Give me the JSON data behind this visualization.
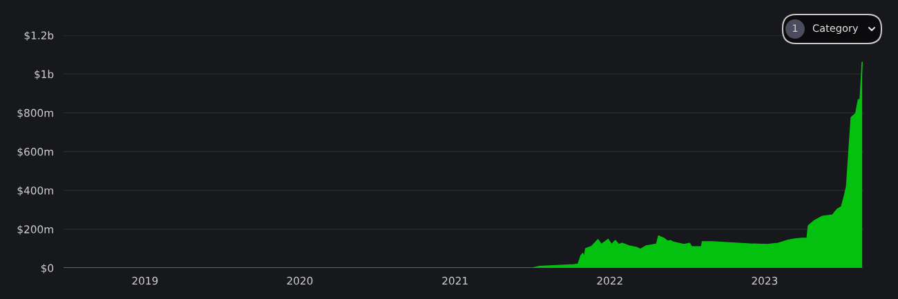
{
  "chart_data": {
    "type": "area",
    "x": [
      "2018-06-23",
      "2021-07-03",
      "2021-07-19",
      "2021-10-08",
      "2021-10-18",
      "2021-10-25",
      "2021-10-29",
      "2021-11-02",
      "2021-11-05",
      "2021-11-19",
      "2021-12-04",
      "2021-12-12",
      "2021-12-28",
      "2022-01-05",
      "2022-01-14",
      "2022-01-22",
      "2022-01-30",
      "2022-02-15",
      "2022-03-05",
      "2022-03-14",
      "2022-03-28",
      "2022-04-13",
      "2022-04-21",
      "2022-04-26",
      "2022-05-08",
      "2022-05-17",
      "2022-05-24",
      "2022-06-01",
      "2022-06-25",
      "2022-07-08",
      "2022-07-13",
      "2022-08-05",
      "2022-08-07",
      "2022-08-30",
      "2022-10-17",
      "2022-12-04",
      "2023-01-07",
      "2023-02-02",
      "2023-02-25",
      "2023-03-13",
      "2023-03-29",
      "2023-04-11",
      "2023-04-14",
      "2023-04-27",
      "2023-05-17",
      "2023-06-10",
      "2023-06-21",
      "2023-07-01",
      "2023-07-08",
      "2023-07-13",
      "2023-07-24",
      "2023-08-02",
      "2023-08-03",
      "2023-08-10",
      "2023-08-14",
      "2023-08-19"
    ],
    "series": [
      {
        "color": "#05c10f",
        "values": [
          0,
          0,
          8000000,
          17000000,
          19000000,
          64000000,
          75000000,
          55000000,
          100000000,
          111000000,
          146000000,
          121000000,
          147000000,
          121000000,
          141000000,
          121000000,
          127000000,
          114000000,
          106000000,
          96000000,
          114000000,
          120000000,
          123000000,
          165000000,
          153000000,
          138000000,
          141000000,
          132000000,
          121000000,
          127000000,
          109000000,
          109000000,
          135000000,
          135000000,
          129000000,
          123000000,
          121000000,
          127000000,
          143000000,
          149000000,
          153000000,
          154000000,
          218000000,
          242000000,
          266000000,
          273000000,
          303000000,
          315000000,
          372000000,
          420000000,
          776000000,
          794000000,
          788000000,
          868000000,
          868000000,
          1061000000
        ]
      }
    ],
    "xlim": [
      "2018-06-23",
      "2023-08-22"
    ],
    "xticks": [
      {
        "value": "2019",
        "label": "2019"
      },
      {
        "value": "2020",
        "label": "2020"
      },
      {
        "value": "2021",
        "label": "2021"
      },
      {
        "value": "2022",
        "label": "2022"
      },
      {
        "value": "2023",
        "label": "2023"
      }
    ],
    "ylim": [
      0,
      1200000000
    ],
    "yticks": [
      {
        "value": 0,
        "label": "$0"
      },
      {
        "value": 200000000,
        "label": "$200m"
      },
      {
        "value": 400000000,
        "label": "$400m"
      },
      {
        "value": 600000000,
        "label": "$600m"
      },
      {
        "value": 800000000,
        "label": "$800m"
      },
      {
        "value": 1000000000,
        "label": "$1b"
      },
      {
        "value": 1200000000,
        "label": "$1.2b"
      }
    ],
    "grid": "y",
    "annotations": [
      "1",
      "Category"
    ]
  }
}
